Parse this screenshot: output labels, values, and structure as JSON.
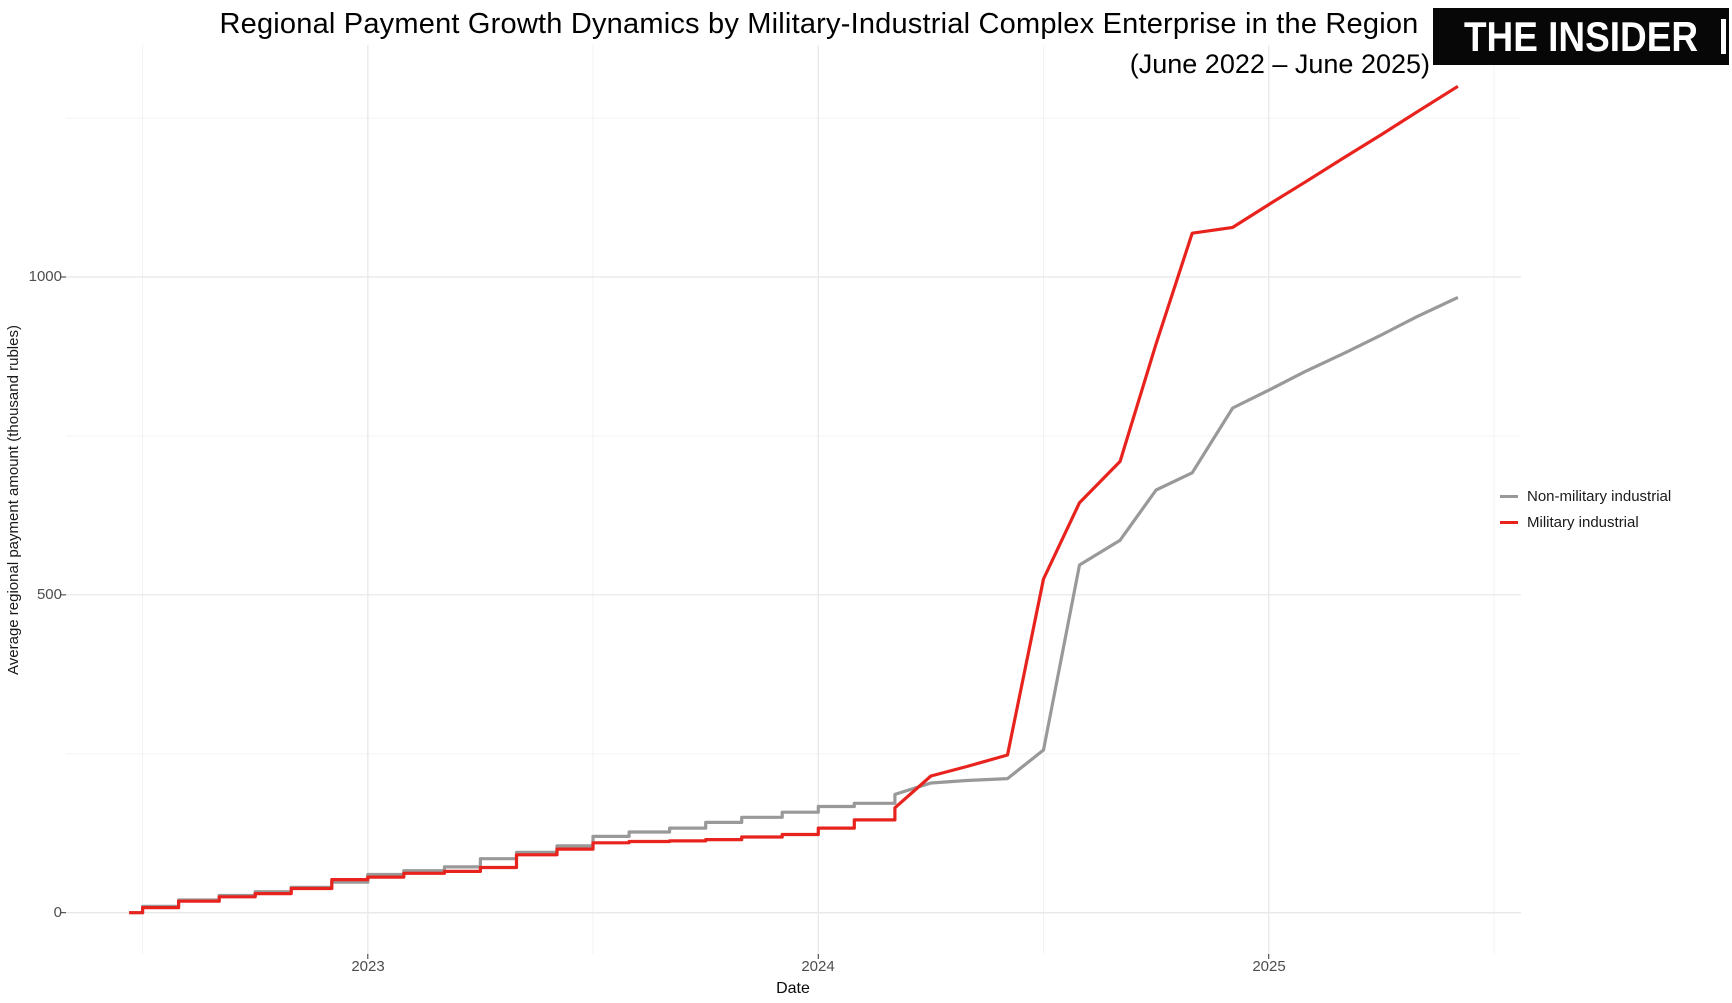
{
  "chart_data": {
    "type": "line",
    "title": "Regional Payment Growth Dynamics by Military-Industrial Complex Enterprise in the Region",
    "subtitle": "(June 2022 – June 2025)",
    "xlabel": "Date",
    "ylabel": "Average regional payment amount (thousand rubles)",
    "x_unit": "decimal_year",
    "x": [
      2022.47,
      2022.5,
      2022.58,
      2022.67,
      2022.75,
      2022.83,
      2022.92,
      2023.0,
      2023.08,
      2023.17,
      2023.25,
      2023.33,
      2023.42,
      2023.5,
      2023.58,
      2023.67,
      2023.75,
      2023.83,
      2023.92,
      2024.0,
      2024.08,
      2024.17,
      2024.25,
      2024.33,
      2024.42,
      2024.5,
      2024.58,
      2024.67,
      2024.75,
      2024.83,
      2024.92,
      2025.0,
      2025.08,
      2025.17,
      2025.25,
      2025.33,
      2025.42
    ],
    "series": [
      {
        "name": "Non-military industrial",
        "color": "#999999",
        "values": [
          0,
          10,
          20,
          27,
          33,
          40,
          48,
          60,
          66,
          72,
          85,
          95,
          105,
          120,
          127,
          133,
          142,
          150,
          158,
          167,
          172,
          186,
          204,
          208,
          211,
          256,
          547,
          586,
          665,
          692,
          794,
          822,
          851,
          881,
          909,
          938,
          968
        ]
      },
      {
        "name": "Military industrial",
        "color": "#e8231e",
        "values": [
          0,
          8,
          18,
          25,
          30,
          38,
          52,
          56,
          62,
          65,
          71,
          91,
          100,
          110,
          112,
          113,
          115,
          119,
          123,
          133,
          146,
          165,
          215,
          230,
          248,
          525,
          645,
          710,
          895,
          1069,
          1078,
          1114,
          1149,
          1189,
          1224,
          1260,
          1300
        ]
      }
    ],
    "xticks": {
      "values": [
        2023,
        2024,
        2025
      ],
      "labels": [
        "2023",
        "2024",
        "2025"
      ]
    },
    "yticks": {
      "values": [
        0,
        500,
        1000
      ],
      "labels": [
        "0",
        "500",
        "1000"
      ]
    },
    "x_minor": [
      2022.5,
      2023.5,
      2024.5,
      2025.5
    ],
    "y_minor": [
      250,
      750,
      1250
    ],
    "xlim": [
      2022.33,
      2025.56
    ],
    "ylim": [
      -65,
      1365
    ],
    "grid": true,
    "legend_position": "right"
  },
  "logo": {
    "text": "THE INSIDER"
  }
}
